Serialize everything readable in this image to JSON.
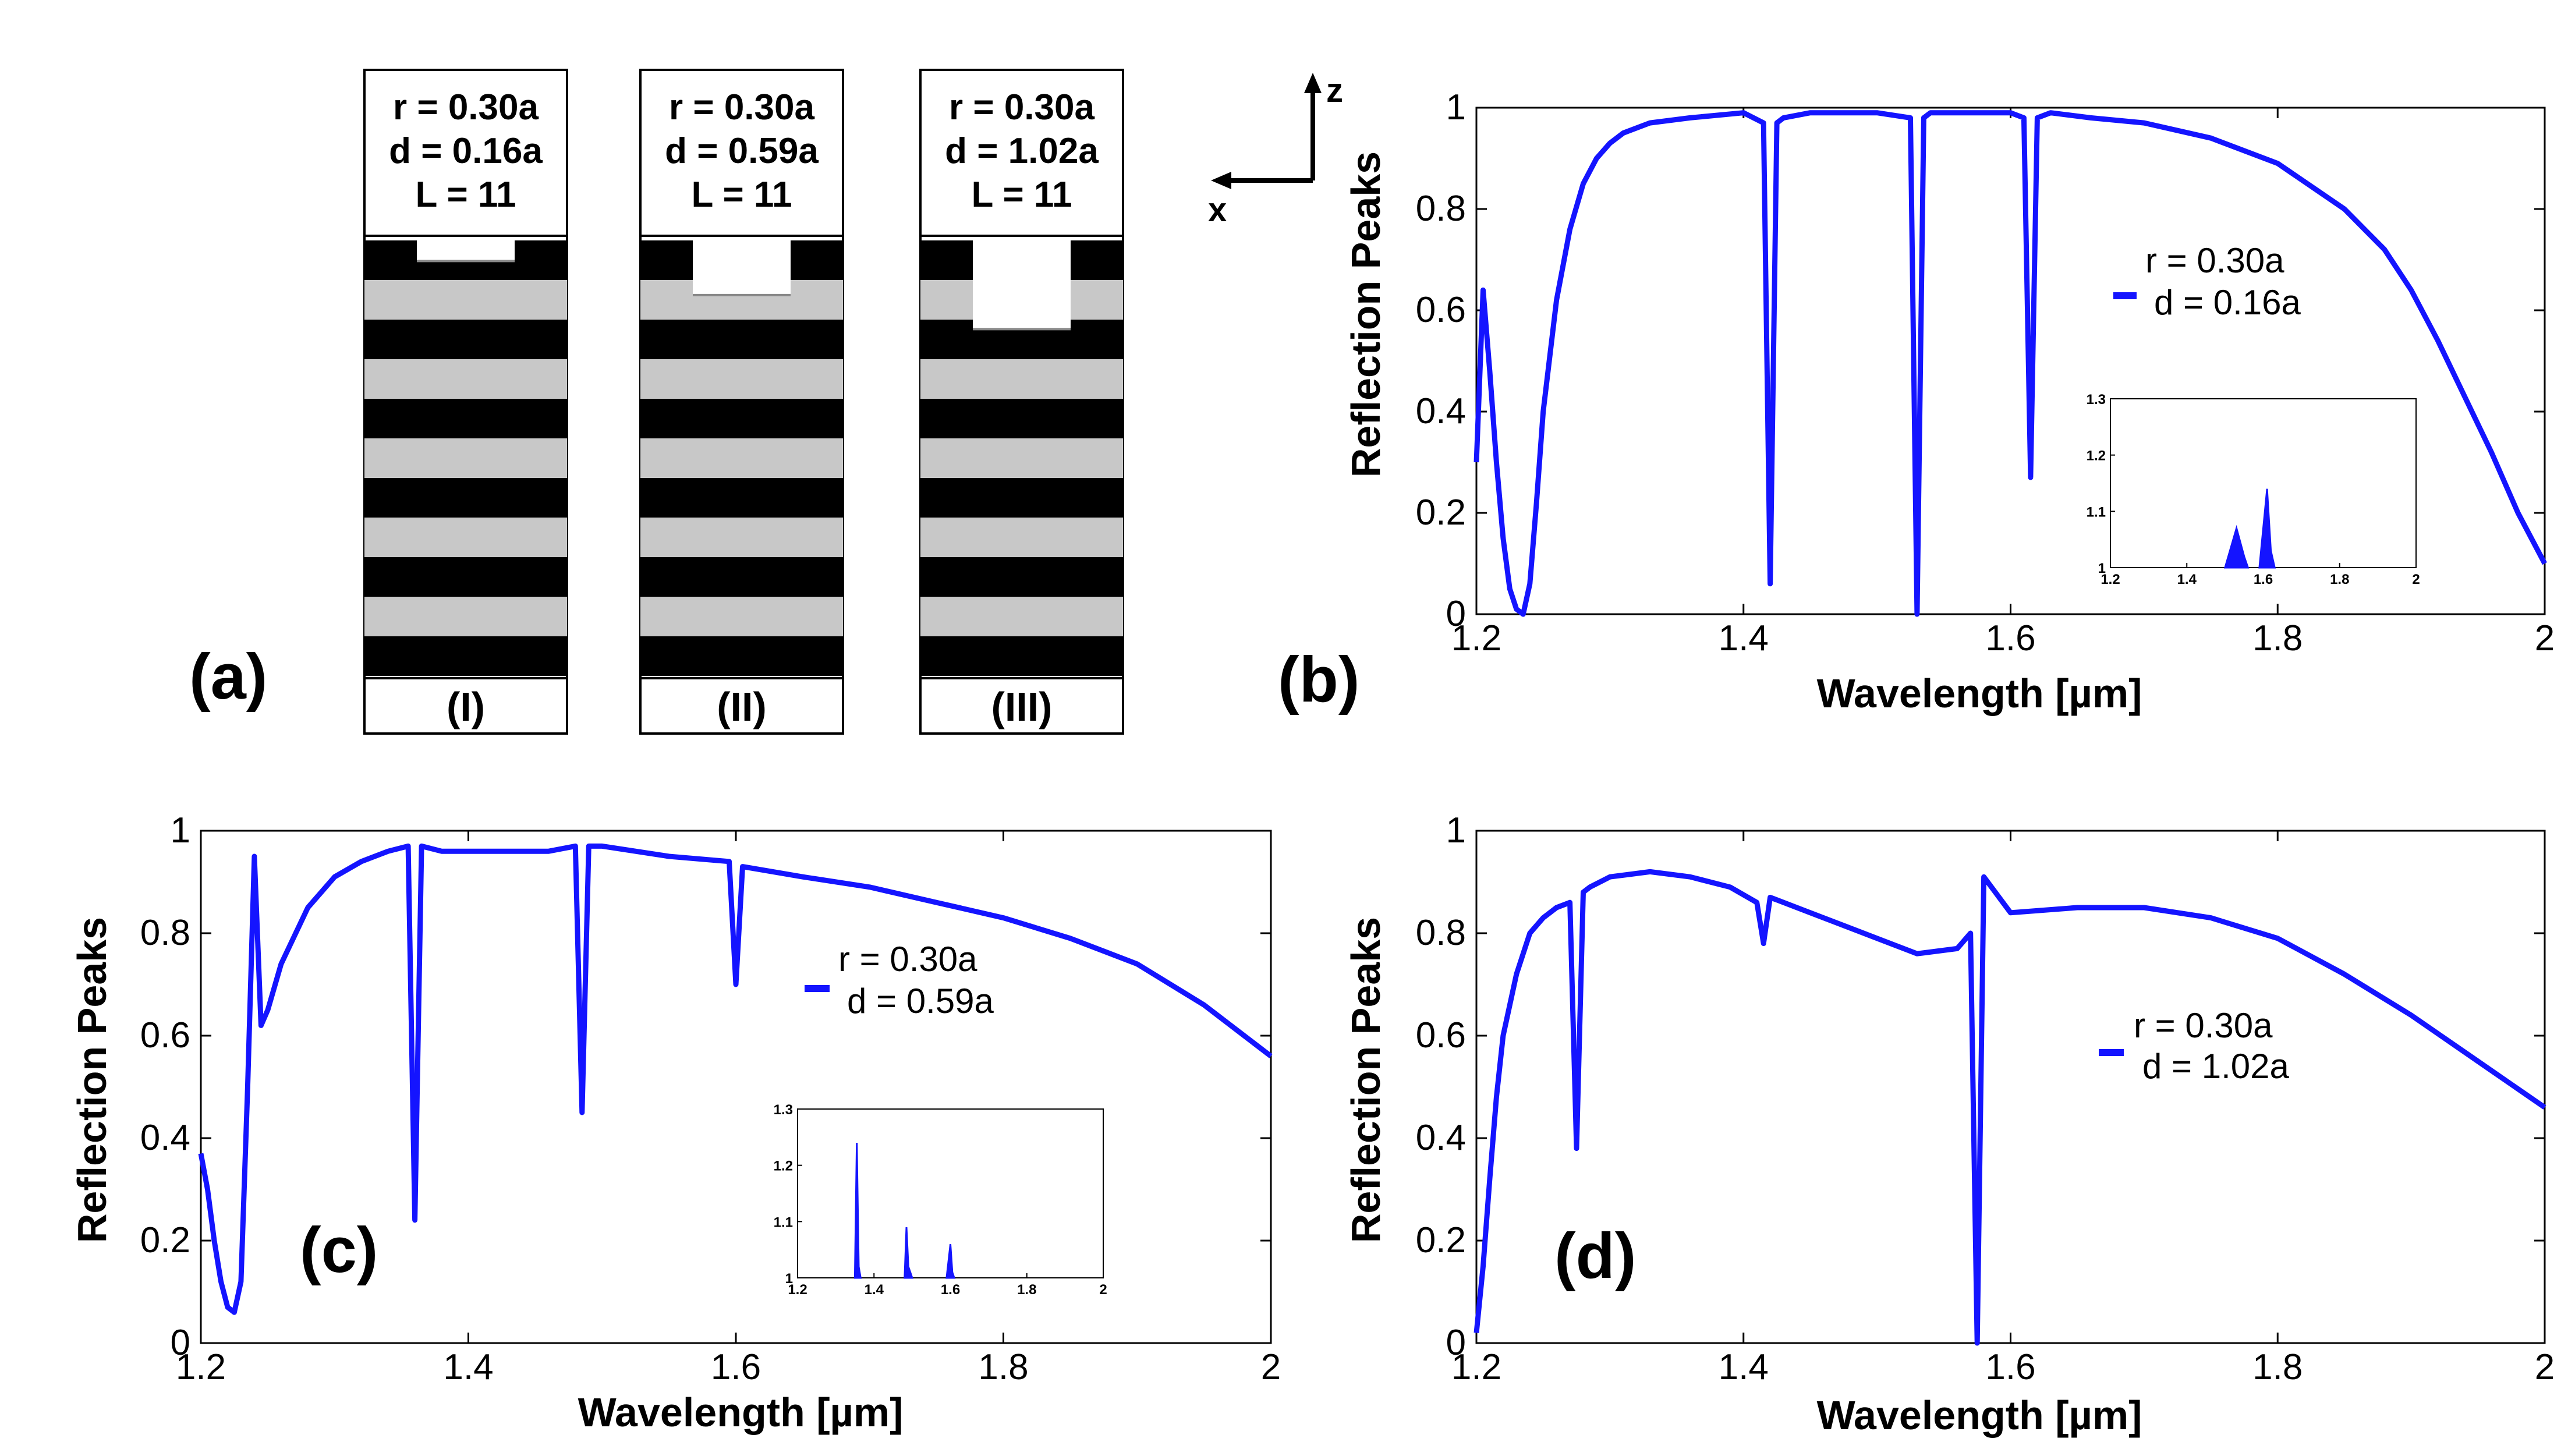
{
  "colors": {
    "series": "#1414ff",
    "axis": "#000000",
    "wall": "#000000",
    "hole_fill": "#c8c8c8",
    "background": "#ffffff"
  },
  "schematic": {
    "panel_label": "(a)",
    "axes": {
      "z_label": "z",
      "x_label": "x"
    },
    "structures": [
      {
        "r": "r = 0.30a",
        "d": "d = 0.16a",
        "L": "L = 11",
        "label": "(I)",
        "d_value": 0.16
      },
      {
        "r": "r = 0.30a",
        "d": "d = 0.59a",
        "L": "L = 11",
        "label": "(II)",
        "d_value": 0.59
      },
      {
        "r": "r = 0.30a",
        "d": "d = 1.02a",
        "L": "L = 11",
        "label": "(III)",
        "d_value": 1.02
      }
    ]
  },
  "chart_data": [
    {
      "panel": "(b)",
      "type": "line",
      "xlabel": "Wavelength [µm]",
      "ylabel": "Reflection Peaks",
      "xlim": [
        1.2,
        2.0
      ],
      "ylim": [
        0,
        1
      ],
      "xticks": [
        "1.2",
        "1.4",
        "1.6",
        "1.8",
        "2"
      ],
      "yticks": [
        "0",
        "0.2",
        "0.4",
        "0.6",
        "0.8",
        "1"
      ],
      "legend": [
        "r = 0.30a",
        "d = 0.16a"
      ],
      "legend_position": "right-middle",
      "series": [
        {
          "name": "r = 0.30a, d = 0.16a",
          "x": [
            1.2,
            1.205,
            1.21,
            1.215,
            1.22,
            1.225,
            1.23,
            1.235,
            1.24,
            1.245,
            1.25,
            1.26,
            1.27,
            1.28,
            1.29,
            1.3,
            1.31,
            1.33,
            1.36,
            1.4,
            1.415,
            1.42,
            1.425,
            1.43,
            1.45,
            1.5,
            1.525,
            1.53,
            1.535,
            1.54,
            1.56,
            1.6,
            1.61,
            1.615,
            1.62,
            1.63,
            1.66,
            1.7,
            1.75,
            1.8,
            1.85,
            1.88,
            1.9,
            1.92,
            1.94,
            1.96,
            1.98,
            2.0
          ],
          "y": [
            0.3,
            0.64,
            0.48,
            0.3,
            0.15,
            0.05,
            0.01,
            0.0,
            0.06,
            0.22,
            0.4,
            0.62,
            0.76,
            0.85,
            0.9,
            0.93,
            0.95,
            0.97,
            0.98,
            0.99,
            0.97,
            0.06,
            0.97,
            0.98,
            0.99,
            0.99,
            0.98,
            0.0,
            0.98,
            0.99,
            0.99,
            0.99,
            0.98,
            0.27,
            0.98,
            0.99,
            0.98,
            0.97,
            0.94,
            0.89,
            0.8,
            0.72,
            0.64,
            0.54,
            0.43,
            0.32,
            0.2,
            0.1
          ]
        }
      ],
      "inset": {
        "xlim": [
          1.2,
          2.0
        ],
        "ylim": [
          1.0,
          1.3
        ],
        "xticks": [
          "1.2",
          "1.4",
          "1.6",
          "1.8",
          "2"
        ],
        "yticks": [
          "1",
          "1.1",
          "1.2",
          "1.3"
        ],
        "peaks": [
          {
            "x": [
              1.5,
              1.53,
              1.55,
              1.56
            ],
            "y": [
              1.0,
              1.07,
              1.02,
              1.0
            ]
          },
          {
            "x": [
              1.59,
              1.61,
              1.62,
              1.63
            ],
            "y": [
              1.0,
              1.14,
              1.03,
              1.0
            ]
          }
        ]
      }
    },
    {
      "panel": "(c)",
      "type": "line",
      "xlabel": "Wavelength [µm]",
      "ylabel": "Reflection Peaks",
      "xlim": [
        1.2,
        2.0
      ],
      "ylim": [
        0,
        1
      ],
      "xticks": [
        "1.2",
        "1.4",
        "1.6",
        "1.8",
        "2"
      ],
      "yticks": [
        "0",
        "0.2",
        "0.4",
        "0.6",
        "0.8",
        "1"
      ],
      "legend": [
        "r = 0.30a",
        "d = 0.59a"
      ],
      "legend_position": "right-middle",
      "series": [
        {
          "name": "r = 0.30a, d = 0.59a",
          "x": [
            1.2,
            1.205,
            1.21,
            1.215,
            1.22,
            1.225,
            1.23,
            1.235,
            1.24,
            1.245,
            1.25,
            1.26,
            1.28,
            1.3,
            1.32,
            1.34,
            1.355,
            1.36,
            1.365,
            1.38,
            1.42,
            1.46,
            1.48,
            1.485,
            1.49,
            1.5,
            1.55,
            1.595,
            1.6,
            1.605,
            1.65,
            1.7,
            1.75,
            1.8,
            1.85,
            1.9,
            1.95,
            2.0
          ],
          "y": [
            0.37,
            0.3,
            0.2,
            0.12,
            0.07,
            0.06,
            0.12,
            0.5,
            0.95,
            0.62,
            0.65,
            0.74,
            0.85,
            0.91,
            0.94,
            0.96,
            0.97,
            0.24,
            0.97,
            0.96,
            0.96,
            0.96,
            0.97,
            0.45,
            0.97,
            0.97,
            0.95,
            0.94,
            0.7,
            0.93,
            0.91,
            0.89,
            0.86,
            0.83,
            0.79,
            0.74,
            0.66,
            0.56
          ]
        }
      ],
      "inset": {
        "xlim": [
          1.2,
          2.0
        ],
        "ylim": [
          1.0,
          1.3
        ],
        "xticks": [
          "1.2",
          "1.4",
          "1.6",
          "1.8",
          "2"
        ],
        "yticks": [
          "1",
          "1.1",
          "1.2",
          "1.3"
        ],
        "peaks": [
          {
            "x": [
              1.35,
              1.355,
              1.36,
              1.365
            ],
            "y": [
              1.0,
              1.24,
              1.02,
              1.0
            ]
          },
          {
            "x": [
              1.48,
              1.485,
              1.49,
              1.5
            ],
            "y": [
              1.0,
              1.09,
              1.02,
              1.0
            ]
          },
          {
            "x": [
              1.59,
              1.6,
              1.605,
              1.61
            ],
            "y": [
              1.0,
              1.06,
              1.01,
              1.0
            ]
          }
        ]
      }
    },
    {
      "panel": "(d)",
      "type": "line",
      "xlabel": "Wavelength [µm]",
      "ylabel": "Reflection Peaks",
      "xlim": [
        1.2,
        2.0
      ],
      "ylim": [
        0,
        1
      ],
      "xticks": [
        "1.2",
        "1.4",
        "1.6",
        "1.8",
        "2"
      ],
      "yticks": [
        "0",
        "0.2",
        "0.4",
        "0.6",
        "0.8",
        "1"
      ],
      "legend": [
        "r = 0.30a",
        "d = 1.02a"
      ],
      "legend_position": "right-middle",
      "series": [
        {
          "name": "r = 0.30a, d = 1.02a",
          "x": [
            1.2,
            1.205,
            1.21,
            1.215,
            1.22,
            1.23,
            1.24,
            1.25,
            1.26,
            1.27,
            1.275,
            1.28,
            1.285,
            1.3,
            1.33,
            1.36,
            1.39,
            1.41,
            1.415,
            1.42,
            1.45,
            1.5,
            1.53,
            1.56,
            1.57,
            1.575,
            1.58,
            1.6,
            1.65,
            1.7,
            1.75,
            1.8,
            1.85,
            1.9,
            1.95,
            2.0
          ],
          "y": [
            0.02,
            0.15,
            0.32,
            0.48,
            0.6,
            0.72,
            0.8,
            0.83,
            0.85,
            0.86,
            0.38,
            0.88,
            0.89,
            0.91,
            0.92,
            0.91,
            0.89,
            0.86,
            0.78,
            0.87,
            0.84,
            0.79,
            0.76,
            0.77,
            0.8,
            0.0,
            0.91,
            0.84,
            0.85,
            0.85,
            0.83,
            0.79,
            0.72,
            0.64,
            0.55,
            0.46
          ]
        }
      ]
    }
  ]
}
